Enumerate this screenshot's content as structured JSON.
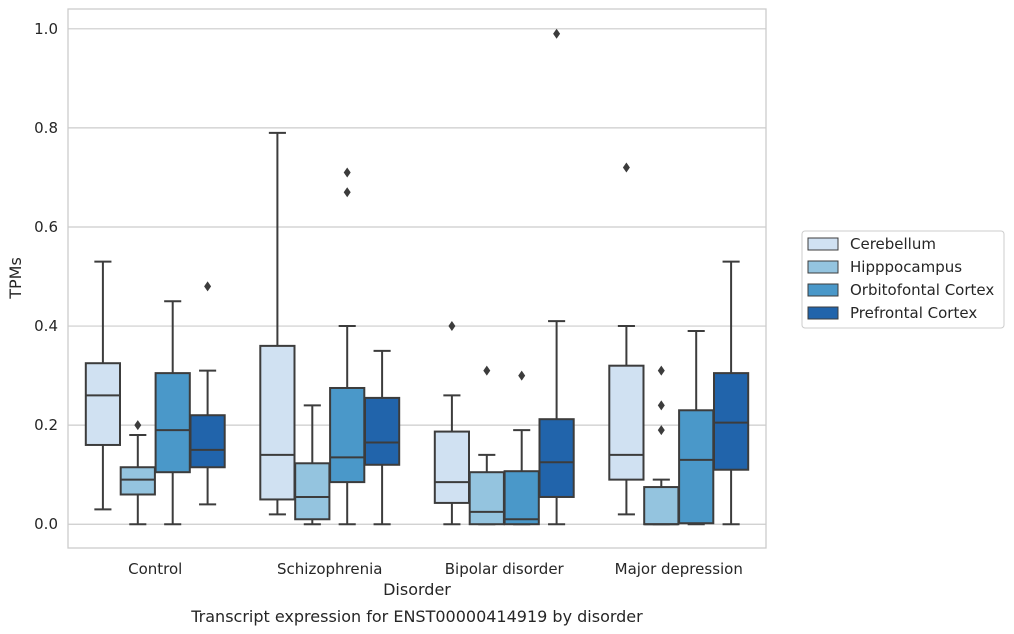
{
  "chart_data": {
    "type": "box",
    "xlabel": "Disorder",
    "ylabel": "TPMs",
    "caption": "Transcript expression for ENST00000414919 by disorder",
    "ylim": [
      -0.048,
      1.04
    ],
    "yticks": [
      "0.0",
      "0.2",
      "0.4",
      "0.6",
      "0.8",
      "1.0"
    ],
    "grid": "horizontal",
    "legend_position": "right",
    "categories": [
      "Control",
      "Schizophrenia",
      "Bipolar disorder",
      "Major depression"
    ],
    "series": [
      {
        "name": "Cerebellum",
        "color": "#d0e1f2",
        "boxes": [
          {
            "whislo": 0.03,
            "q1": 0.16,
            "med": 0.26,
            "q3": 0.325,
            "whishi": 0.53,
            "fliers": []
          },
          {
            "whislo": 0.02,
            "q1": 0.05,
            "med": 0.14,
            "q3": 0.36,
            "whishi": 0.79,
            "fliers": []
          },
          {
            "whislo": 0.0,
            "q1": 0.043,
            "med": 0.085,
            "q3": 0.187,
            "whishi": 0.26,
            "fliers": [
              0.4
            ]
          },
          {
            "whislo": 0.02,
            "q1": 0.09,
            "med": 0.14,
            "q3": 0.32,
            "whishi": 0.4,
            "fliers": [
              0.72
            ]
          }
        ]
      },
      {
        "name": "Hipppocampus",
        "color": "#94c4df",
        "boxes": [
          {
            "whislo": 0.0,
            "q1": 0.06,
            "med": 0.09,
            "q3": 0.115,
            "whishi": 0.18,
            "fliers": [
              0.2
            ]
          },
          {
            "whislo": 0.0,
            "q1": 0.01,
            "med": 0.055,
            "q3": 0.123,
            "whishi": 0.24,
            "fliers": []
          },
          {
            "whislo": 0.0,
            "q1": 0.0,
            "med": 0.025,
            "q3": 0.105,
            "whishi": 0.14,
            "fliers": [
              0.31
            ]
          },
          {
            "whislo": 0.0,
            "q1": 0.0,
            "med": 0.0,
            "q3": 0.075,
            "whishi": 0.09,
            "fliers": [
              0.19,
              0.24,
              0.31
            ]
          }
        ]
      },
      {
        "name": "Orbitofontal Cortex",
        "color": "#4a98c9",
        "boxes": [
          {
            "whislo": 0.0,
            "q1": 0.105,
            "med": 0.19,
            "q3": 0.305,
            "whishi": 0.45,
            "fliers": []
          },
          {
            "whislo": 0.0,
            "q1": 0.085,
            "med": 0.135,
            "q3": 0.275,
            "whishi": 0.4,
            "fliers": [
              0.67,
              0.71
            ]
          },
          {
            "whislo": 0.0,
            "q1": 0.0,
            "med": 0.01,
            "q3": 0.107,
            "whishi": 0.19,
            "fliers": [
              0.3
            ]
          },
          {
            "whislo": 0.0,
            "q1": 0.002,
            "med": 0.13,
            "q3": 0.23,
            "whishi": 0.39,
            "fliers": []
          }
        ]
      },
      {
        "name": "Prefrontal Cortex",
        "color": "#2164ab",
        "boxes": [
          {
            "whislo": 0.04,
            "q1": 0.115,
            "med": 0.15,
            "q3": 0.22,
            "whishi": 0.31,
            "fliers": [
              0.48
            ]
          },
          {
            "whislo": 0.0,
            "q1": 0.12,
            "med": 0.165,
            "q3": 0.255,
            "whishi": 0.35,
            "fliers": []
          },
          {
            "whislo": 0.0,
            "q1": 0.055,
            "med": 0.125,
            "q3": 0.212,
            "whishi": 0.41,
            "fliers": [
              0.99
            ]
          },
          {
            "whislo": 0.0,
            "q1": 0.11,
            "med": 0.205,
            "q3": 0.305,
            "whishi": 0.53,
            "fliers": []
          }
        ]
      }
    ]
  }
}
